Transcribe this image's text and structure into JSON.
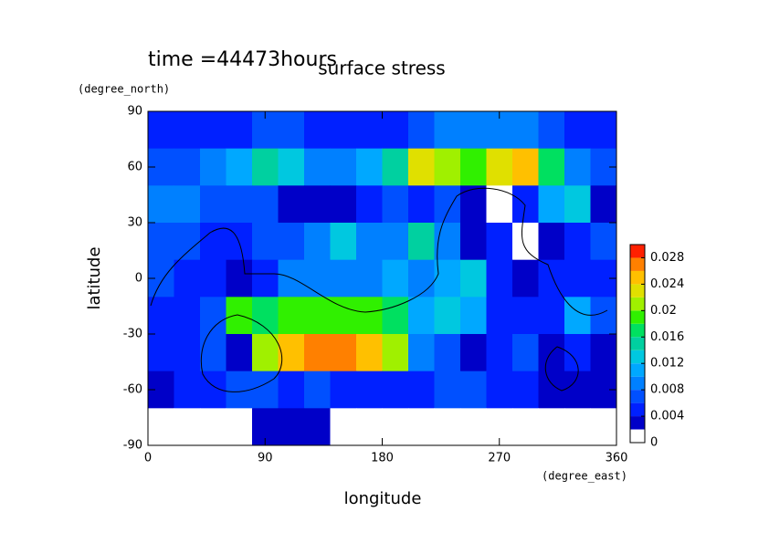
{
  "chart_data": {
    "type": "contour",
    "title": "surface stress",
    "subtitle": "time =44473hours",
    "x_label": "longitude",
    "x_unit": "(degree_east)",
    "y_label": "latitude",
    "y_unit": "(degree_north)",
    "xlim": [
      0,
      360
    ],
    "xticks": [
      0,
      90,
      180,
      270,
      360
    ],
    "ylim": [
      -90,
      90
    ],
    "yticks": [
      -90,
      -60,
      -30,
      0,
      30,
      60,
      90
    ],
    "x": [
      10,
      30,
      50,
      70,
      90,
      110,
      130,
      150,
      170,
      190,
      210,
      230,
      250,
      270,
      290,
      310,
      330,
      350
    ],
    "y": [
      80,
      60,
      40,
      20,
      0,
      -20,
      -40,
      -60,
      -80
    ],
    "z": [
      [
        0.004,
        0.004,
        0.004,
        0.004,
        0.006,
        0.006,
        0.004,
        0.004,
        0.004,
        0.004,
        0.006,
        0.008,
        0.008,
        0.008,
        0.008,
        0.006,
        0.004,
        0.004
      ],
      [
        0.006,
        0.006,
        0.008,
        0.01,
        0.014,
        0.012,
        0.008,
        0.008,
        0.01,
        0.014,
        0.022,
        0.02,
        0.018,
        0.022,
        0.024,
        0.016,
        0.008,
        0.006
      ],
      [
        0.008,
        0.008,
        0.006,
        0.006,
        0.006,
        0.002,
        0.002,
        0.002,
        0.004,
        0.006,
        0.004,
        0.006,
        0.002,
        0,
        0.004,
        0.01,
        0.012,
        0.002
      ],
      [
        0.006,
        0.006,
        0.004,
        0.004,
        0.006,
        0.006,
        0.008,
        0.012,
        0.008,
        0.008,
        0.014,
        0.008,
        0.002,
        0.004,
        0,
        0.002,
        0.004,
        0.006
      ],
      [
        0.006,
        0.004,
        0.004,
        0.002,
        0.004,
        0.008,
        0.008,
        0.008,
        0.008,
        0.01,
        0.008,
        0.01,
        0.012,
        0.004,
        0.002,
        0.004,
        0.004,
        0.004
      ],
      [
        0.004,
        0.004,
        0.006,
        0.018,
        0.016,
        0.018,
        0.018,
        0.018,
        0.018,
        0.016,
        0.01,
        0.012,
        0.01,
        0.004,
        0.004,
        0.004,
        0.01,
        0.006
      ],
      [
        0.004,
        0.004,
        0.006,
        0.002,
        0.02,
        0.024,
        0.026,
        0.026,
        0.024,
        0.02,
        0.008,
        0.006,
        0.002,
        0.004,
        0.006,
        0.002,
        0.004,
        0.002
      ],
      [
        0.002,
        0.004,
        0.004,
        0.006,
        0.006,
        0.004,
        0.006,
        0.004,
        0.004,
        0.004,
        0.004,
        0.006,
        0.006,
        0.004,
        0.004,
        0.002,
        0.002,
        0.002
      ],
      [
        0,
        0,
        0,
        0,
        0.002,
        0.002,
        0.002,
        0,
        0,
        0,
        0,
        0,
        0,
        0,
        0,
        0,
        0,
        0
      ]
    ],
    "levels": [
      0,
      0.002,
      0.004,
      0.006,
      0.008,
      0.01,
      0.012,
      0.014,
      0.016,
      0.018,
      0.02,
      0.022,
      0.024,
      0.026,
      0.028,
      0.03
    ],
    "colors": [
      "#ffffff",
      "#0000c8",
      "#0020ff",
      "#0050ff",
      "#0080ff",
      "#00a8ff",
      "#00c8e0",
      "#00d0a0",
      "#00e060",
      "#30f000",
      "#a0f000",
      "#e0e000",
      "#ffc000",
      "#ff8000",
      "#ff2000"
    ],
    "colorbar_ticks": [
      0,
      0.004,
      0.008,
      0.012,
      0.016,
      0.02,
      0.024,
      0.028
    ]
  }
}
